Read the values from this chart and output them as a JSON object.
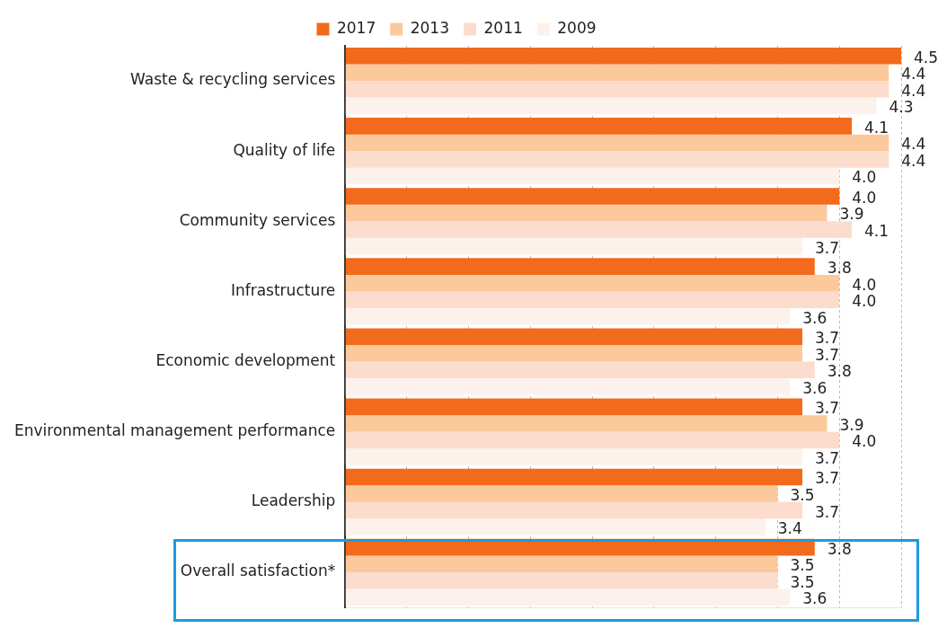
{
  "chart_data": {
    "type": "bar",
    "orientation": "horizontal",
    "categories": [
      "Waste & recycling services",
      "Quality of life",
      "Community services",
      "Infrastructure",
      "Economic development",
      "Environmental management performance",
      "Leadership",
      "Overall satisfaction*"
    ],
    "series": [
      {
        "name": "2017",
        "color": "#f26a1b",
        "values": [
          4.5,
          4.1,
          4.0,
          3.8,
          3.7,
          3.7,
          3.7,
          3.8
        ],
        "value_labels": [
          "4.5",
          "4.1",
          "4.0",
          "3.8",
          "3.7",
          "3.7",
          "3.7",
          "3.8"
        ]
      },
      {
        "name": "2013",
        "color": "#fbc99b",
        "values": [
          4.4,
          4.4,
          3.9,
          4.0,
          3.7,
          3.9,
          3.5,
          3.5
        ],
        "value_labels": [
          "4.4",
          "4.4",
          "3.9",
          "4.0",
          "3.7",
          "3.9",
          "3.5",
          "3.5"
        ]
      },
      {
        "name": "2011",
        "color": "#fcdccc",
        "values": [
          4.4,
          4.4,
          4.1,
          4.0,
          3.8,
          4.0,
          3.7,
          3.5
        ],
        "value_labels": [
          "4.4",
          "4.4",
          "4.1",
          "4.0",
          "3.8",
          "4.0",
          "3.7",
          "3.5"
        ]
      },
      {
        "name": "2009",
        "color": "#fdf1ec",
        "values": [
          4.3,
          4.0,
          3.7,
          3.6,
          3.6,
          3.7,
          3.4,
          3.6
        ],
        "value_labels": [
          "4.3",
          "4.0",
          "3.7",
          "3.6",
          "3.6",
          "3.7",
          "3.4",
          "3.6"
        ]
      }
    ],
    "grid": "x",
    "legend": "top",
    "tick_labels": "y"
  }
}
